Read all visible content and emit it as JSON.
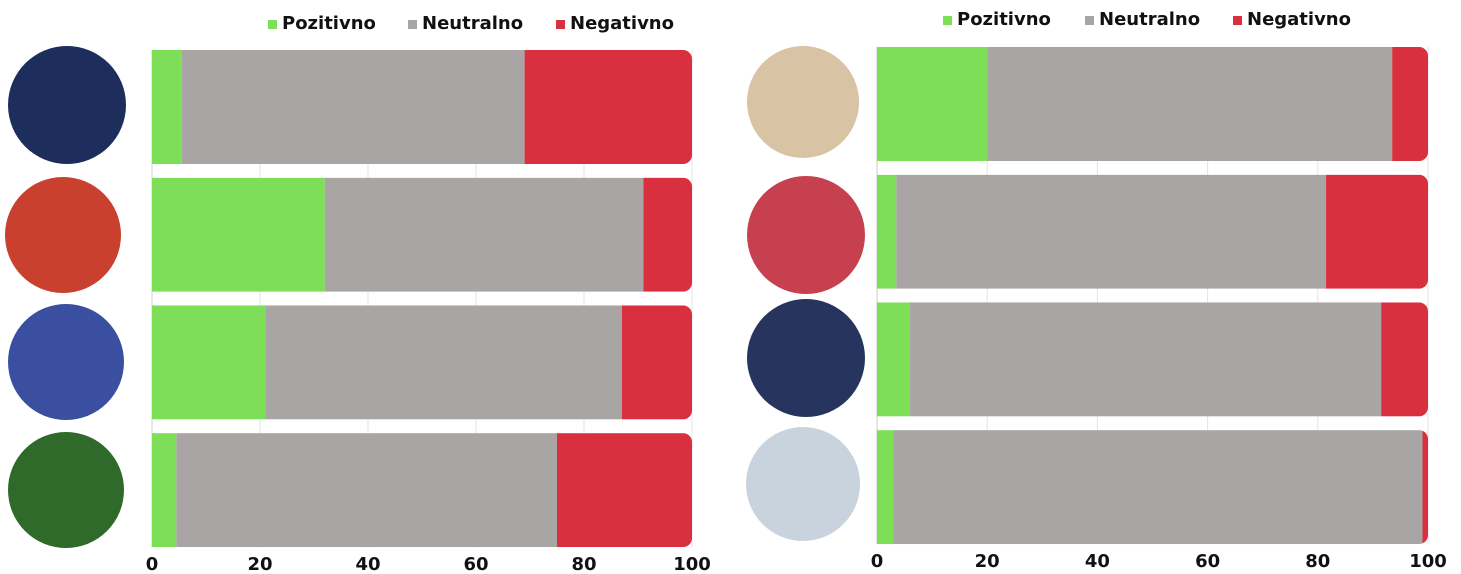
{
  "chart_data": [
    {
      "type": "bar",
      "orientation": "horizontal",
      "stacked": true,
      "categories": [
        null,
        null,
        null,
        null
      ],
      "series": [
        {
          "name": "Pozitivno",
          "color": "#7ddf58",
          "values": [
            5.5,
            32,
            21,
            4.5
          ]
        },
        {
          "name": "Neutralno",
          "color": "#a8a5a4",
          "values": [
            63.5,
            59,
            66,
            70.5
          ]
        },
        {
          "name": "Negativno",
          "color": "#d9303f",
          "values": [
            31,
            9,
            13,
            25
          ]
        }
      ],
      "xlim": [
        0,
        100
      ],
      "xticks": [
        0,
        20,
        40,
        60,
        80,
        100
      ],
      "grid": true,
      "legend": "top"
    },
    {
      "type": "bar",
      "orientation": "horizontal",
      "stacked": true,
      "categories": [
        null,
        null,
        null,
        null
      ],
      "series": [
        {
          "name": "Pozitivno",
          "color": "#7ddf58",
          "values": [
            20,
            3.5,
            6,
            3
          ]
        },
        {
          "name": "Neutralno",
          "color": "#a8a5a4",
          "values": [
            73.5,
            78,
            85.5,
            96
          ]
        },
        {
          "name": "Negativno",
          "color": "#d9303f",
          "values": [
            6.5,
            18.5,
            8.5,
            1
          ]
        }
      ],
      "xlim": [
        0,
        100
      ],
      "xticks": [
        0,
        20,
        40,
        60,
        80,
        100
      ],
      "grid": true,
      "legend": "top"
    }
  ]
}
